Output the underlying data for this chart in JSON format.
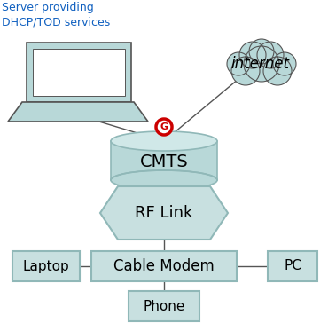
{
  "background_color": "#ffffff",
  "teal_fill": "#b8d8d8",
  "teal_edge": "#90b8b8",
  "teal_top": "#d0e8e8",
  "box_fill": "#c8e0e0",
  "box_edge": "#90b8b8",
  "line_color": "#555555",
  "text_color": "#000000",
  "annotation_color": "#1060c0",
  "red_color": "#cc0000",
  "cmts_label": "CMTS",
  "rflink_label": "RF Link",
  "cablemodem_label": "Cable Modem",
  "laptop_label": "Laptop",
  "pc_label": "PC",
  "phone_label": "Phone",
  "internet_label": "internet",
  "server_label": "Server providing\nDHCP/TOD services",
  "g_label": "G"
}
